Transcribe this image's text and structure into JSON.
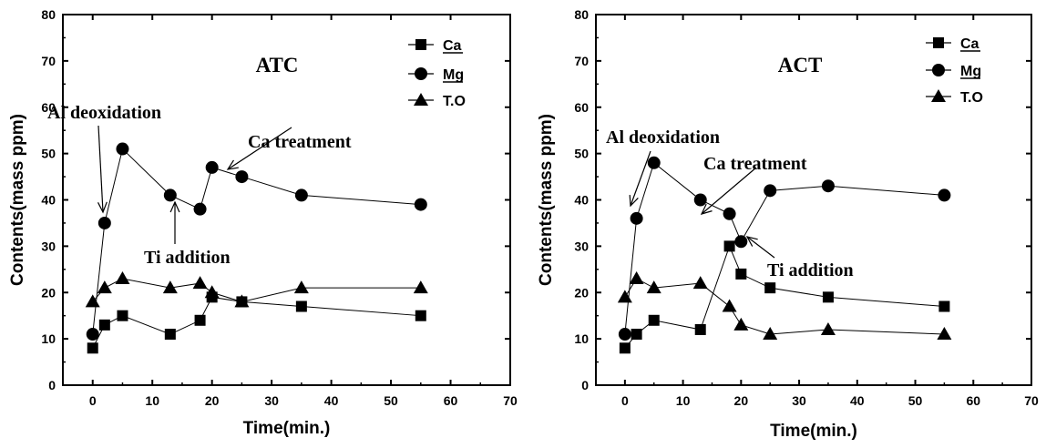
{
  "chart_data": [
    {
      "type": "line",
      "title": "ATC",
      "xlabel": "Time(min.)",
      "ylabel": "Contents(mass ppm)",
      "xlim": [
        -5,
        70
      ],
      "ylim": [
        0,
        80
      ],
      "xticks": [
        "0",
        "10",
        "20",
        "30",
        "40",
        "50",
        "60",
        "70"
      ],
      "yticks": [
        "0",
        "10",
        "20",
        "30",
        "40",
        "50",
        "60",
        "70",
        "80"
      ],
      "grid": false,
      "legend": "top-right",
      "series": [
        {
          "name": "Ca",
          "marker": "square",
          "x": [
            0,
            2,
            5,
            13,
            18,
            20,
            25,
            35,
            55
          ],
          "y": [
            8,
            13,
            15,
            11,
            14,
            19,
            18,
            17,
            15
          ]
        },
        {
          "name": "Mg",
          "marker": "circle",
          "x": [
            0,
            2,
            5,
            13,
            18,
            20,
            25,
            35,
            55
          ],
          "y": [
            11,
            35,
            51,
            41,
            38,
            47,
            45,
            41,
            39
          ]
        },
        {
          "name": "T.O",
          "marker": "triangle",
          "x": [
            0,
            2,
            5,
            13,
            18,
            20,
            25,
            35,
            55
          ],
          "y": [
            18,
            21,
            23,
            21,
            22,
            20,
            18,
            21,
            21
          ]
        }
      ],
      "annotations": [
        {
          "text": "Al deoxidation"
        },
        {
          "text": "Ca treatment"
        },
        {
          "text": "Ti addition"
        }
      ]
    },
    {
      "type": "line",
      "title": "ACT",
      "xlabel": "Time(min.)",
      "ylabel": "Contents(mass ppm)",
      "xlim": [
        -5,
        70
      ],
      "ylim": [
        0,
        80
      ],
      "xticks": [
        "0",
        "10",
        "20",
        "30",
        "40",
        "50",
        "60",
        "70"
      ],
      "yticks": [
        "0",
        "10",
        "20",
        "30",
        "40",
        "50",
        "60",
        "70",
        "80"
      ],
      "grid": false,
      "legend": "top-right",
      "series": [
        {
          "name": "Ca",
          "marker": "square",
          "x": [
            0,
            2,
            5,
            13,
            18,
            20,
            25,
            35,
            55
          ],
          "y": [
            8,
            11,
            14,
            12,
            30,
            24,
            21,
            19,
            17
          ]
        },
        {
          "name": "Mg",
          "marker": "circle",
          "x": [
            0,
            2,
            5,
            13,
            18,
            20,
            25,
            35,
            55
          ],
          "y": [
            11,
            36,
            48,
            40,
            37,
            31,
            42,
            43,
            41
          ]
        },
        {
          "name": "T.O",
          "marker": "triangle",
          "x": [
            0,
            2,
            5,
            13,
            18,
            20,
            25,
            35,
            55
          ],
          "y": [
            19,
            23,
            21,
            22,
            17,
            13,
            11,
            12,
            11
          ]
        }
      ],
      "annotations": [
        {
          "text": "Al deoxidation"
        },
        {
          "text": "Ca treatment"
        },
        {
          "text": "Ti addition"
        }
      ]
    }
  ]
}
